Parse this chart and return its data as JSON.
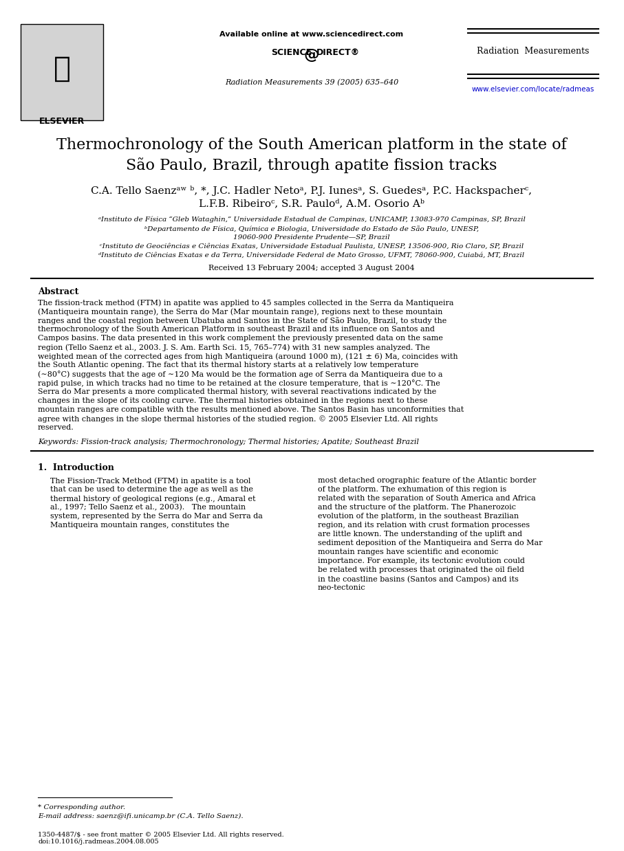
{
  "bg_color": "#ffffff",
  "header": {
    "available_online": "Available online at www.sciencedirect.com",
    "journal_info": "Radiation Measurements 39 (2005) 635–640",
    "journal_name": "Radiation  Measurements",
    "url": "www.elsevier.com/locate/radmeas",
    "url_color": "#0000cc"
  },
  "title": "Thermochronology of the South American platform in the state of\nSão Paulo, Brazil, through apatite fission tracks",
  "authors": "C.A. Tello Saenzᵃʷ ᵇ, *, J.C. Hadler Netoᵃ, P.J. Iunesᵃ, S. Guedesᵃ, P.C. Hackspacherᶜ,\nL.F.B. Ribeiroᶜ, S.R. Pauloᵈ, A.M. Osorio Aᵇ",
  "affiliations": [
    "ᵃInstituto de Física “Gleb Wataghin,” Universidade Estadual de Campinas, UNICAMP, 13083-970 Campinas, SP, Brazil",
    "ᵇDepartamento de Física, Química e Biologia, Universidade do Estado de São Paulo, UNESP,",
    "19060-900 Presidente Prudente—SP, Brazil",
    "ᶜInstituto de Geociências e Ciências Exatas, Universidade Estadual Paulista, UNESP, 13506-900, Rio Claro, SP, Brazil",
    "ᵈInstituto de Ciências Exatas e da Terra, Universidade Federal de Mato Grosso, UFMT, 78060-900, Cuiabá, MT, Brazil"
  ],
  "received": "Received 13 February 2004; accepted 3 August 2004",
  "abstract_title": "Abstract",
  "abstract_text": "The fission-track method (FTM) in apatite was applied to 45 samples collected in the Serra da Mantiqueira (Mantiqueira mountain range), the Serra do Mar (Mar mountain range), regions next to these mountain ranges and the coastal region between Ubatuba and Santos in the State of São Paulo, Brazil, to study the thermochronology of the South American Platform in southeast Brazil and its influence on Santos and Campos basins. The data presented in this work complement the previously presented data on the same region (Tello Saenz et al., 2003. J. S. Am. Earth Sci. 15, 765–774) with 31 new samples analyzed. The weighted mean of the corrected ages from high Mantiqueira (around 1000 m), (121 ± 6) Ma, coincides with the South Atlantic opening. The fact that its thermal history starts at a relatively low temperature (∼80°C) suggests that the age of ∼120 Ma would be the formation age of Serra da Mantiqueira due to a rapid pulse, in which tracks had no time to be retained at the closure temperature, that is ∼120°C. The Serra do Mar presents a more complicated thermal history, with several reactivations indicated by the changes in the slope of its cooling curve. The thermal histories obtained in the regions next to these mountain ranges are compatible with the results mentioned above. The Santos Basin has unconformities that agree with changes in the slope thermal histories of the studied region.\n© 2005 Elsevier Ltd. All rights reserved.",
  "keywords": "Keywords: Fission-track analysis; Thermochronology; Thermal histories; Apatite; Southeast Brazil",
  "intro_title": "1.  Introduction",
  "intro_col1": "The Fission-Track Method (FTM) in apatite is a tool that can be used to determine the age as well as the thermal history of geological regions (e.g., Amaral et al., 1997; Tello Saenz et al., 2003).\n\nThe mountain system, represented by the Serra do Mar and Serra da Mantiqueira mountain ranges, constitutes the",
  "intro_col2": "most detached orographic feature of the Atlantic border of the platform. The exhumation of this region is related with the separation of South America and Africa and the structure of the platform. The Phanerozoic evolution of the platform, in the southeast Brazilian region, and its relation with crust formation processes are little known. The understanding of the uplift and sediment deposition of the Mantiqueira and Serra do Mar mountain ranges have scientific and economic importance. For example, its tectonic evolution could be related with processes that originated the oil field in the coastline basins (Santos and Campos) and its neo-tectonic",
  "footnote_corr": "* Corresponding author.",
  "footnote_email": "E-mail address: saenz@ifi.unicamp.br (C.A. Tello Saenz).",
  "footer_left": "1350-4487/$ - see front matter © 2005 Elsevier Ltd. All rights reserved.\ndoi:10.1016/j.radmeas.2004.08.005"
}
